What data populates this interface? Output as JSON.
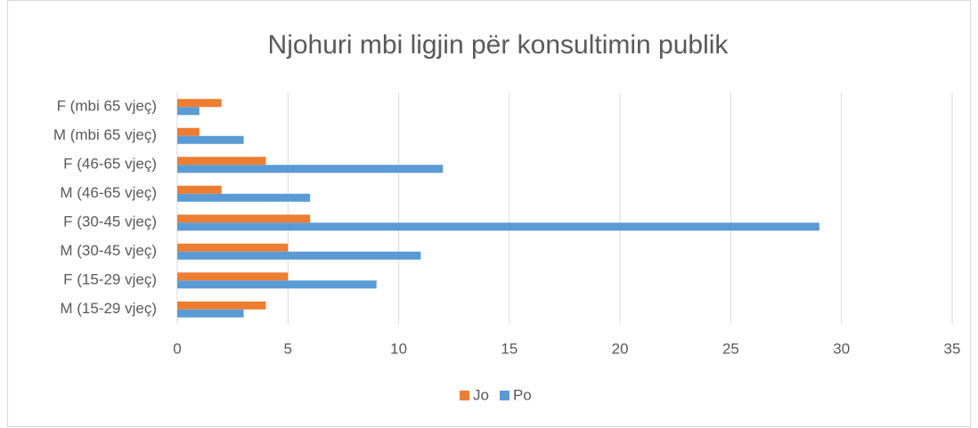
{
  "chart_data": {
    "type": "hbar",
    "title": "Njohuri mbi ligjin për konsultimin publik",
    "categories": [
      "M (15-29 vjeç)",
      "F (15-29 vjeç)",
      "M (30-45 vjeç)",
      "F (30-45 vjeç)",
      "M (46-65 vjeç)",
      "F (46-65 vjeç)",
      "M (mbi 65 vjeç)",
      "F (mbi 65 vjeç)"
    ],
    "series": [
      {
        "name": "Jo",
        "color": "#ed7d31",
        "values": [
          4,
          5,
          5,
          6,
          2,
          4,
          1,
          2
        ]
      },
      {
        "name": "Po",
        "color": "#5b9bd5",
        "values": [
          3,
          9,
          11,
          29,
          6,
          12,
          3,
          1
        ]
      }
    ],
    "xlim": [
      0,
      35
    ],
    "xticks": [
      0,
      5,
      10,
      15,
      20,
      25,
      30,
      35
    ],
    "grid": true,
    "legend": "bottom"
  }
}
